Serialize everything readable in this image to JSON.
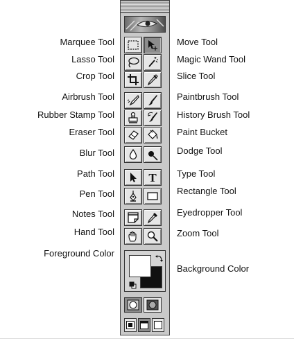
{
  "labels_left": [
    "Marquee Tool",
    "Lasso Tool",
    "Crop Tool",
    "Airbrush Tool",
    "Rubber Stamp Tool",
    "Eraser Tool",
    "Blur Tool",
    "Path Tool",
    "Pen Tool",
    "Notes Tool",
    "Hand Tool",
    "Foreground Color"
  ],
  "labels_right": [
    "Move Tool",
    "Magic Wand Tool",
    "Slice Tool",
    "Paintbrush Tool",
    "History Brush Tool",
    "Paint Bucket",
    "Dodge Tool",
    "Type Tool",
    "Rectangle Tool",
    "Eyedropper Tool",
    "Zoom Tool",
    "Background Color"
  ],
  "type_tool_glyph": "T",
  "icons": {
    "marquee": "marquee-icon",
    "move": "move-icon",
    "lasso": "lasso-icon",
    "magic_wand": "magic-wand-icon",
    "crop": "crop-icon",
    "slice": "slice-icon",
    "airbrush": "airbrush-icon",
    "paintbrush": "paintbrush-icon",
    "rubber_stamp": "rubber-stamp-icon",
    "history_brush": "history-brush-icon",
    "eraser": "eraser-icon",
    "paint_bucket": "paint-bucket-icon",
    "blur": "blur-icon",
    "dodge": "dodge-icon",
    "path": "path-select-icon",
    "type": "type-icon",
    "pen": "pen-icon",
    "rectangle": "rectangle-icon",
    "notes": "notes-icon",
    "eyedropper": "eyedropper-icon",
    "hand": "hand-icon",
    "zoom": "zoom-icon"
  },
  "colors": {
    "foreground": "#ffffff",
    "background": "#111111",
    "toolbox_bg": "#c9c9c9",
    "active_tool": "#8c8c8c"
  }
}
